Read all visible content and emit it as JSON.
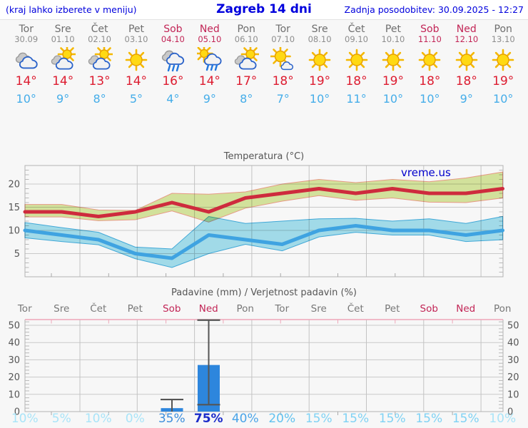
{
  "header": {
    "left": "(kraj lahko izberete v meniju)",
    "title": "Zagreb 14 dni",
    "right": "Zadnja posodobitev: 30.09.2025 - 12:27"
  },
  "days": [
    {
      "weekday": "Tor",
      "date": "30.09",
      "weekend": false,
      "icon": "cloudy",
      "high": "14°",
      "low": "10°"
    },
    {
      "weekday": "Sre",
      "date": "01.10",
      "weekend": false,
      "icon": "sun-cloud",
      "high": "14°",
      "low": "9°"
    },
    {
      "weekday": "Čet",
      "date": "02.10",
      "weekend": false,
      "icon": "sun-cloud",
      "high": "13°",
      "low": "8°"
    },
    {
      "weekday": "Pet",
      "date": "03.10",
      "weekend": false,
      "icon": "sun",
      "high": "14°",
      "low": "5°"
    },
    {
      "weekday": "Sob",
      "date": "04.10",
      "weekend": true,
      "icon": "rain",
      "high": "16°",
      "low": "4°"
    },
    {
      "weekday": "Ned",
      "date": "05.10",
      "weekend": true,
      "icon": "sun-rain",
      "high": "14°",
      "low": "9°"
    },
    {
      "weekday": "Pon",
      "date": "06.10",
      "weekend": false,
      "icon": "sun-cloud",
      "high": "17°",
      "low": "8°"
    },
    {
      "weekday": "Tor",
      "date": "07.10",
      "weekend": false,
      "icon": "sun-small-cloud",
      "high": "18°",
      "low": "7°"
    },
    {
      "weekday": "Sre",
      "date": "08.10",
      "weekend": false,
      "icon": "sun",
      "high": "19°",
      "low": "10°"
    },
    {
      "weekday": "Čet",
      "date": "09.10",
      "weekend": false,
      "icon": "sun",
      "high": "18°",
      "low": "11°"
    },
    {
      "weekday": "Pet",
      "date": "10.10",
      "weekend": false,
      "icon": "sun",
      "high": "19°",
      "low": "10°"
    },
    {
      "weekday": "Sob",
      "date": "11.10",
      "weekend": true,
      "icon": "sun",
      "high": "18°",
      "low": "10°"
    },
    {
      "weekday": "Ned",
      "date": "12.10",
      "weekend": true,
      "icon": "sun",
      "high": "18°",
      "low": "9°"
    },
    {
      "weekday": "Pon",
      "date": "13.10",
      "weekend": false,
      "icon": "sun",
      "high": "19°",
      "low": "10°"
    }
  ],
  "temp_chart": {
    "title": "Temperatura (°C)",
    "watermark": "vreme.us"
  },
  "precip_chart": {
    "title": "Padavine (mm) / Verjetnost padavin (%)"
  },
  "chart_data": [
    {
      "type": "line",
      "title": "Temperatura (°C)",
      "categories": [
        "Tor 30.09",
        "Sre 01.10",
        "Čet 02.10",
        "Pet 03.10",
        "Sob 04.10",
        "Ned 05.10",
        "Pon 06.10",
        "Tor 07.10",
        "Sre 08.10",
        "Čet 09.10",
        "Pet 10.10",
        "Sob 11.10",
        "Ned 12.10",
        "Pon 13.10"
      ],
      "series": [
        {
          "name": "max_temp",
          "values": [
            14,
            14,
            13,
            14,
            16,
            14,
            17,
            18,
            19,
            18,
            19,
            18,
            18,
            19
          ],
          "color": "#ce2b3d"
        },
        {
          "name": "max_band_upper",
          "values": [
            15.6,
            15.6,
            14.4,
            14.3,
            18.0,
            17.8,
            18.3,
            20.0,
            21.0,
            20.3,
            21.0,
            20.5,
            21.3,
            22.6
          ]
        },
        {
          "name": "max_band_lower",
          "values": [
            12.9,
            12.9,
            12.1,
            12.3,
            14.2,
            11.8,
            14.8,
            16.3,
            17.5,
            16.5,
            17.0,
            16.1,
            16.0,
            17.0
          ]
        },
        {
          "name": "min_temp",
          "values": [
            10,
            9,
            8,
            5,
            4,
            9,
            8,
            7,
            10,
            11,
            10,
            10,
            9,
            10
          ],
          "color": "#3fa3e1"
        },
        {
          "name": "min_band_upper",
          "values": [
            11.7,
            10.6,
            9.6,
            6.4,
            6.0,
            13.0,
            11.5,
            12.0,
            12.5,
            12.6,
            12.0,
            12.5,
            11.5,
            13.0
          ]
        },
        {
          "name": "min_band_lower",
          "values": [
            8.4,
            7.6,
            6.9,
            3.9,
            2.0,
            5.0,
            7.0,
            5.6,
            8.6,
            9.6,
            9.0,
            9.0,
            7.6,
            8.0
          ]
        }
      ],
      "ylim": [
        0,
        24
      ],
      "yticks": [
        5,
        10,
        15,
        20
      ],
      "grid": true,
      "legend": "none",
      "annotations": [
        "vreme.us"
      ]
    },
    {
      "type": "bar",
      "title": "Padavine (mm) / Verjetnost padavin (%)",
      "categories": [
        "Tor",
        "Sre",
        "Čet",
        "Pet",
        "Sob",
        "Ned",
        "Pon",
        "Tor",
        "Sre",
        "Čet",
        "Pet",
        "Sob",
        "Ned",
        "Pon"
      ],
      "values": [
        0,
        0,
        0,
        0,
        2,
        27,
        0,
        0,
        0,
        0,
        0,
        0,
        0,
        0
      ],
      "whiskers": [
        {
          "day": 4,
          "lo": 0,
          "hi": 7,
          "cap_lo": false,
          "cap_hi": true
        },
        {
          "day": 5,
          "lo": 4,
          "hi": 53,
          "cap_lo": true,
          "cap_hi": true
        }
      ],
      "probabilities": [
        10,
        5,
        10,
        0,
        35,
        75,
        40,
        20,
        15,
        15,
        15,
        15,
        15,
        10
      ],
      "ylim": [
        0,
        53
      ],
      "yticks": [
        0,
        10,
        20,
        30,
        40,
        50
      ],
      "grid": true,
      "legend": "none"
    }
  ],
  "probability_row": [
    {
      "label": "10%",
      "color": "#a9e4f8",
      "strong": false
    },
    {
      "label": "5%",
      "color": "#a9e4f8",
      "strong": false
    },
    {
      "label": "10%",
      "color": "#a9e4f8",
      "strong": false
    },
    {
      "label": "0%",
      "color": "#a9e4f8",
      "strong": false
    },
    {
      "label": "35%",
      "color": "#3d8edc",
      "strong": false
    },
    {
      "label": "75%",
      "color": "#1b2cc9",
      "strong": true
    },
    {
      "label": "40%",
      "color": "#4aa4e8",
      "strong": false
    },
    {
      "label": "20%",
      "color": "#62c2ef",
      "strong": false
    },
    {
      "label": "15%",
      "color": "#7fd2f4",
      "strong": false
    },
    {
      "label": "15%",
      "color": "#7fd2f4",
      "strong": false
    },
    {
      "label": "15%",
      "color": "#7fd2f4",
      "strong": false
    },
    {
      "label": "15%",
      "color": "#7fd2f4",
      "strong": false
    },
    {
      "label": "15%",
      "color": "#7fd2f4",
      "strong": false
    },
    {
      "label": "10%",
      "color": "#a9e4f8",
      "strong": false
    }
  ],
  "colors": {
    "header_blue": "#0000dd",
    "weekend": "#c22556",
    "weekday_gray": "#6e6e6e",
    "high_red": "#dd1c30",
    "low_blue": "#45ade9",
    "max_line": "#ce2b3d",
    "max_band": "#d9e9a0",
    "max_band_edge": "#ee9e88",
    "min_line": "#3fa3e1",
    "min_band": "#a6e1f0",
    "min_band_edge": "#43aede",
    "bar_blue": "#2d86dd",
    "whisker_gray": "#555555",
    "precip_top_border": "#eda6b8",
    "watermark_blue": "#0000cc"
  }
}
